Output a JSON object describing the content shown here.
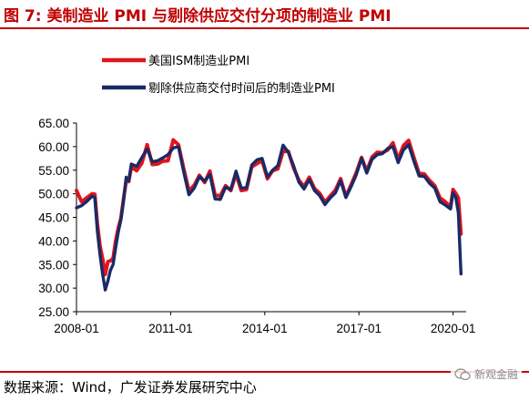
{
  "header": {
    "title": "图 7: 美制造业 PMI 与剔除供应交付分项的制造业 PMI"
  },
  "footer": {
    "source": "数据来源：Wind，广发证券发展研究中心",
    "watermark": "新观金融"
  },
  "colors": {
    "accent": "#c00000",
    "series_red": "#e0141e",
    "series_navy": "#1a2a66"
  },
  "chart_data": {
    "type": "line",
    "title": "",
    "xlabel": "",
    "ylabel": "",
    "ylim": [
      25,
      65
    ],
    "yticks": [
      "25.00",
      "30.00",
      "35.00",
      "40.00",
      "45.00",
      "50.00",
      "55.00",
      "60.00",
      "65.00"
    ],
    "xlim": [
      "2008-01",
      "2020-06"
    ],
    "xticks": [
      "2008-01",
      "2011-01",
      "2014-01",
      "2017-01",
      "2020-01"
    ],
    "grid": false,
    "legend": "top-left",
    "series": [
      {
        "name": "美国ISM制造业PMI",
        "color": "#e0141e",
        "x": [
          "2008-01",
          "2008-03",
          "2008-05",
          "2008-07",
          "2008-08",
          "2008-09",
          "2008-10",
          "2008-11",
          "2008-12",
          "2009-01",
          "2009-02",
          "2009-03",
          "2009-04",
          "2009-05",
          "2009-06",
          "2009-07",
          "2009-08",
          "2009-09",
          "2009-10",
          "2009-12",
          "2010-02",
          "2010-04",
          "2010-06",
          "2010-08",
          "2010-10",
          "2010-12",
          "2011-02",
          "2011-04",
          "2011-06",
          "2011-08",
          "2011-10",
          "2011-12",
          "2012-02",
          "2012-04",
          "2012-06",
          "2012-08",
          "2012-10",
          "2012-12",
          "2013-02",
          "2013-04",
          "2013-06",
          "2013-08",
          "2013-10",
          "2013-12",
          "2014-02",
          "2014-04",
          "2014-06",
          "2014-08",
          "2014-10",
          "2014-12",
          "2015-02",
          "2015-04",
          "2015-06",
          "2015-08",
          "2015-10",
          "2015-12",
          "2016-02",
          "2016-04",
          "2016-06",
          "2016-08",
          "2016-10",
          "2016-12",
          "2017-02",
          "2017-04",
          "2017-06",
          "2017-08",
          "2017-10",
          "2017-12",
          "2018-02",
          "2018-04",
          "2018-06",
          "2018-08",
          "2018-10",
          "2018-12",
          "2019-02",
          "2019-04",
          "2019-06",
          "2019-08",
          "2019-10",
          "2019-12",
          "2020-01",
          "2020-02",
          "2020-03",
          "2020-04"
        ],
        "y": [
          50.7,
          48.3,
          49.2,
          50.0,
          49.9,
          43.5,
          38.9,
          36.2,
          32.9,
          35.6,
          35.8,
          36.3,
          40.1,
          42.8,
          44.8,
          48.9,
          52.8,
          52.6,
          55.7,
          54.9,
          56.5,
          60.4,
          56.2,
          56.3,
          56.9,
          57.0,
          61.4,
          60.4,
          55.3,
          50.6,
          51.8,
          53.9,
          52.4,
          54.8,
          49.7,
          49.6,
          51.7,
          50.7,
          54.2,
          50.7,
          50.9,
          55.7,
          56.4,
          57.0,
          53.2,
          54.9,
          55.3,
          59.0,
          59.0,
          55.5,
          52.9,
          51.5,
          53.5,
          51.1,
          50.1,
          48.2,
          49.5,
          50.8,
          53.2,
          49.4,
          51.9,
          54.5,
          57.7,
          54.8,
          57.8,
          58.8,
          58.7,
          59.3,
          60.8,
          57.3,
          60.2,
          61.3,
          57.7,
          54.3,
          54.2,
          52.8,
          51.7,
          49.1,
          48.3,
          47.2,
          50.9,
          50.1,
          49.1,
          41.5
        ]
      },
      {
        "name": "剔除供应商交付时间后的制造业PMI",
        "color": "#1a2a66",
        "x": [
          "2008-01",
          "2008-03",
          "2008-05",
          "2008-07",
          "2008-08",
          "2008-09",
          "2008-10",
          "2008-11",
          "2008-12",
          "2009-01",
          "2009-02",
          "2009-03",
          "2009-04",
          "2009-05",
          "2009-06",
          "2009-07",
          "2009-08",
          "2009-09",
          "2009-10",
          "2009-12",
          "2010-02",
          "2010-04",
          "2010-06",
          "2010-08",
          "2010-10",
          "2010-12",
          "2011-02",
          "2011-04",
          "2011-06",
          "2011-08",
          "2011-10",
          "2011-12",
          "2012-02",
          "2012-04",
          "2012-06",
          "2012-08",
          "2012-10",
          "2012-12",
          "2013-02",
          "2013-04",
          "2013-06",
          "2013-08",
          "2013-10",
          "2013-12",
          "2014-02",
          "2014-04",
          "2014-06",
          "2014-08",
          "2014-10",
          "2014-12",
          "2015-02",
          "2015-04",
          "2015-06",
          "2015-08",
          "2015-10",
          "2015-12",
          "2016-02",
          "2016-04",
          "2016-06",
          "2016-08",
          "2016-10",
          "2016-12",
          "2017-02",
          "2017-04",
          "2017-06",
          "2017-08",
          "2017-10",
          "2017-12",
          "2018-02",
          "2018-04",
          "2018-06",
          "2018-08",
          "2018-10",
          "2018-12",
          "2019-02",
          "2019-04",
          "2019-06",
          "2019-08",
          "2019-10",
          "2019-12",
          "2020-01",
          "2020-02",
          "2020-03",
          "2020-04"
        ],
        "y": [
          47.0,
          47.5,
          48.4,
          49.5,
          49.2,
          42.0,
          37.0,
          33.0,
          29.6,
          31.5,
          33.8,
          35.0,
          38.7,
          42.0,
          44.5,
          48.5,
          53.5,
          52.8,
          56.3,
          55.8,
          57.7,
          59.5,
          56.8,
          57.0,
          57.6,
          58.3,
          59.7,
          60.0,
          54.6,
          49.8,
          51.2,
          53.6,
          52.7,
          54.1,
          48.9,
          48.8,
          51.4,
          50.9,
          54.8,
          51.2,
          51.3,
          56.1,
          57.2,
          57.5,
          53.6,
          55.0,
          56.0,
          60.3,
          58.8,
          56.0,
          52.5,
          51.0,
          53.0,
          50.7,
          49.6,
          47.7,
          49.1,
          50.2,
          52.8,
          49.2,
          51.5,
          54.1,
          57.5,
          54.4,
          57.3,
          58.3,
          58.5,
          59.6,
          60.0,
          56.6,
          59.3,
          60.4,
          56.9,
          53.8,
          53.7,
          52.2,
          51.2,
          48.3,
          47.6,
          46.8,
          50.2,
          49.3,
          46.0,
          33.0
        ]
      }
    ]
  }
}
